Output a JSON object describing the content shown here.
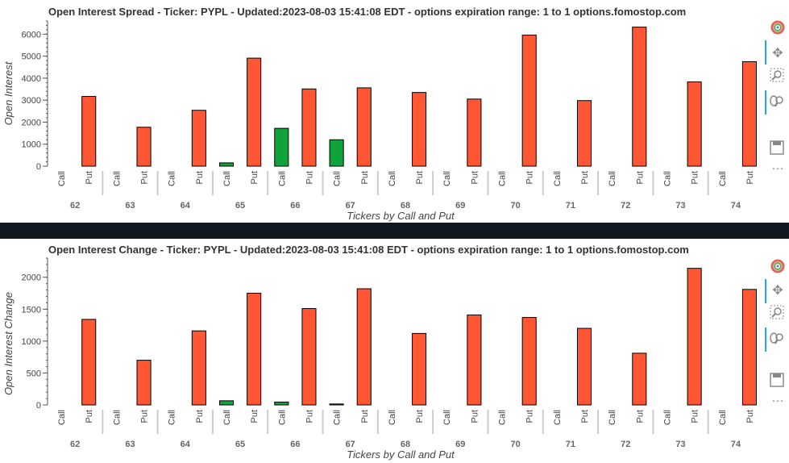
{
  "charts": [
    {
      "title": "Open Interest Spread - Ticker: PYPL - Updated:2023-08-03 15:41:08 EDT - options expiration range: 1 to 1           options.fomostop.com",
      "ylabel": "Open Interest",
      "xlabel": "Tickers by Call and Put"
    },
    {
      "title": "Open Interest Change - Ticker: PYPL - Updated:2023-08-03 15:41:08 EDT - options expiration range: 1 to 1           options.fomostop.com",
      "ylabel": "Open Interest Change",
      "xlabel": "Tickers by Call and Put"
    }
  ],
  "toolbar": {
    "icons": [
      "bokeh-logo-icon",
      "pan-icon",
      "box-zoom-icon",
      "wheel-zoom-icon",
      "save-icon",
      "more-icon"
    ]
  },
  "colors": {
    "call": "#10a33c",
    "put": "#ff5733",
    "divider": "#10171f"
  },
  "chart_data": [
    {
      "type": "bar",
      "title": "Open Interest Spread - Ticker: PYPL - Updated:2023-08-03 15:41:08 EDT - options expiration range: 1 to 1           options.fomostop.com",
      "xlabel": "Tickers by Call and Put",
      "ylabel": "Open Interest",
      "groups": [
        "62",
        "63",
        "64",
        "65",
        "66",
        "67",
        "68",
        "69",
        "70",
        "71",
        "72",
        "73",
        "74"
      ],
      "subcategories": [
        "Call",
        "Put"
      ],
      "series": [
        {
          "name": "Call",
          "values": [
            0,
            0,
            0,
            150,
            1720,
            1200,
            0,
            0,
            0,
            0,
            0,
            0,
            0
          ]
        },
        {
          "name": "Put",
          "values": [
            3170,
            1770,
            2540,
            4910,
            3510,
            3560,
            3350,
            3050,
            5960,
            2980,
            6320,
            3830,
            4750
          ]
        }
      ],
      "ylim": [
        0,
        6600
      ],
      "yticks": [
        0,
        1000,
        2000,
        3000,
        4000,
        5000,
        6000
      ],
      "grid": false
    },
    {
      "type": "bar",
      "title": "Open Interest Change - Ticker: PYPL - Updated:2023-08-03 15:41:08 EDT - options expiration range: 1 to 1           options.fomostop.com",
      "xlabel": "Tickers by Call and Put",
      "ylabel": "Open Interest Change",
      "groups": [
        "62",
        "63",
        "64",
        "65",
        "66",
        "67",
        "68",
        "69",
        "70",
        "71",
        "72",
        "73",
        "74"
      ],
      "subcategories": [
        "Call",
        "Put"
      ],
      "series": [
        {
          "name": "Call",
          "values": [
            0,
            0,
            0,
            65,
            45,
            15,
            0,
            0,
            0,
            0,
            0,
            0,
            0
          ]
        },
        {
          "name": "Put",
          "values": [
            1340,
            700,
            1160,
            1750,
            1510,
            1820,
            1120,
            1410,
            1370,
            1200,
            810,
            2140,
            1810
          ]
        }
      ],
      "ylim": [
        0,
        2300
      ],
      "yticks": [
        0,
        500,
        1000,
        1500,
        2000
      ],
      "grid": false
    }
  ]
}
